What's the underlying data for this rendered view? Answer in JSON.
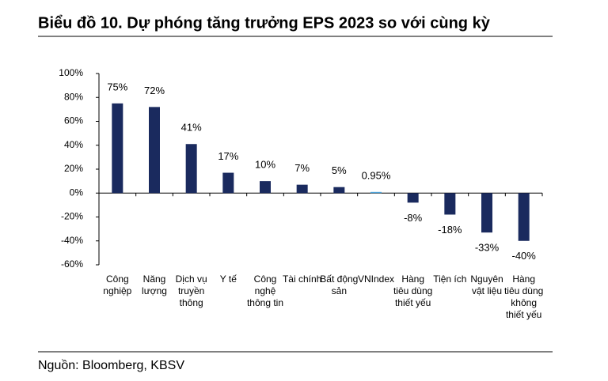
{
  "chart_data": {
    "type": "bar",
    "title": "Biểu đồ 10. Dự phóng tăng trưởng EPS 2023 so với cùng kỳ",
    "source": "Nguồn: Bloomberg, KBSV",
    "categories": [
      "Công nghiệp",
      "Năng lượng",
      "Dịch vụ truyền thông",
      "Y tế",
      "Công nghệ thông tin",
      "Tài chính",
      "Bất động sản",
      "VNIndex",
      "Hàng tiêu dùng thiết yếu",
      "Tiện ích",
      "Nguyên vật liệu",
      "Hàng tiêu dùng không thiết yếu"
    ],
    "values": [
      75,
      72,
      41,
      17,
      10,
      7,
      5,
      0.95,
      -8,
      -18,
      -33,
      -40
    ],
    "value_labels": [
      "75%",
      "72%",
      "41%",
      "17%",
      "10%",
      "7%",
      "5%",
      "0.95%",
      "-8%",
      "-18%",
      "-33%",
      "-40%"
    ],
    "colors": [
      "#1a2a5e",
      "#1a2a5e",
      "#1a2a5e",
      "#1a2a5e",
      "#1a2a5e",
      "#1a2a5e",
      "#1a2a5e",
      "#4da3d9",
      "#1a2a5e",
      "#1a2a5e",
      "#1a2a5e",
      "#1a2a5e"
    ],
    "ylim": [
      -60,
      100
    ],
    "yticks": [
      {
        "value": -60,
        "label": "-60%"
      },
      {
        "value": -40,
        "label": "-40%"
      },
      {
        "value": -20,
        "label": "-20%"
      },
      {
        "value": 0,
        "label": "0%"
      },
      {
        "value": 20,
        "label": "20%"
      },
      {
        "value": 40,
        "label": "40%"
      },
      {
        "value": 60,
        "label": "60%"
      },
      {
        "value": 80,
        "label": "80%"
      },
      {
        "value": 100,
        "label": "100%"
      }
    ],
    "grid": false
  }
}
